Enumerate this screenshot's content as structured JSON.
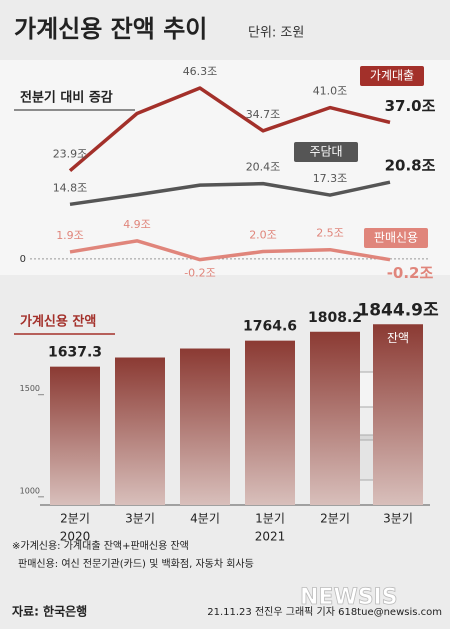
{
  "title": "가계신용 잔액 추이",
  "unit": "단위: 조원",
  "chart_data": [
    {
      "type": "line",
      "title": "전분기 대비 증감",
      "categories": [
        "2분기 2020",
        "3분기 2020",
        "4분기 2020",
        "1분기 2021",
        "2분기 2021",
        "3분기 2021"
      ],
      "ylim": [
        -3,
        52
      ],
      "yticks": [
        0
      ],
      "series": [
        {
          "name": "가계대출",
          "color": "#a3302a",
          "values": [
            23.9,
            39.4,
            46.3,
            34.7,
            41.0,
            37.0
          ],
          "value_labels": [
            "23.9조",
            null,
            "46.3조",
            "34.7조",
            "41.0조",
            "37.0조"
          ]
        },
        {
          "name": "주담대",
          "color": "#555555",
          "values": [
            14.8,
            17.4,
            20.0,
            20.4,
            17.3,
            20.8
          ],
          "value_labels": [
            "14.8조",
            null,
            null,
            "20.4조",
            "17.3조",
            "20.8조"
          ]
        },
        {
          "name": "판매신용",
          "color": "#e0857b",
          "values": [
            1.9,
            4.9,
            -0.2,
            2.0,
            2.5,
            -0.2
          ],
          "value_labels": [
            "1.9조",
            "4.9조",
            "-0.2조",
            "2.0조",
            "2.5조",
            "-0.2조"
          ]
        }
      ]
    },
    {
      "type": "bar",
      "title": "가계신용 잔액",
      "categories": [
        "2분기",
        "3분기",
        "4분기",
        "1분기",
        "2분기",
        "3분기"
      ],
      "year_labels": [
        "2020",
        null,
        null,
        "2021",
        null,
        null
      ],
      "values": [
        1637.3,
        1682.1,
        1726.1,
        1764.6,
        1808.2,
        1844.9
      ],
      "value_labels": [
        "1637.3",
        null,
        null,
        "1764.6",
        "1808.2",
        "1844.9조"
      ],
      "last_sublabel": "잔액",
      "color": "#8b3a33",
      "ylim": [
        960,
        1900
      ],
      "yticks": [
        1000,
        1500
      ]
    }
  ],
  "notes": [
    "※가계신용: 가계대출 잔액+판매신용 잔액",
    "판매신용: 여신 전문기관(카드) 및 백화점, 자동차 회사등"
  ],
  "source": "자료: 한국은행",
  "credit": "21.11.23 전진우 그래픽 기자 618tue@newsis.com",
  "watermark": "NEWSIS"
}
